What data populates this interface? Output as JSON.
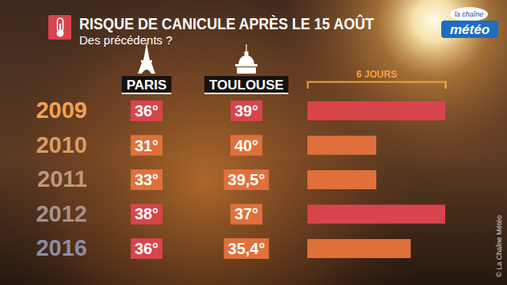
{
  "chart_data": {
    "type": "bar",
    "orientation": "horizontal",
    "title": "RISQUE DE CANICULE APRÈS LE 15 AOÛT",
    "subtitle": "Des précédents ?",
    "categories": [
      "2009",
      "2010",
      "2011",
      "2012",
      "2016"
    ],
    "values": [
      6,
      3,
      3,
      6,
      4.5
    ],
    "colors": [
      "#d8444c",
      "#e0703a",
      "#e0703a",
      "#d8444c",
      "#e0703a"
    ],
    "xlim": [
      0,
      6
    ],
    "xticks": [
      {
        "value": 6,
        "label": "6 JOURS"
      }
    ],
    "columns": [
      {
        "name": "PARIS",
        "values": [
          36,
          31,
          33,
          38,
          36
        ],
        "value_labels": [
          "36°",
          "31°",
          "33°",
          "38°",
          "36°"
        ],
        "colors": [
          "#d8444c",
          "#e0703a",
          "#e0703a",
          "#d8444c",
          "#d8444c"
        ]
      },
      {
        "name": "TOULOUSE",
        "values": [
          39,
          40,
          39.5,
          37,
          35.4
        ],
        "value_labels": [
          "39°",
          "40°",
          "39,5°",
          "37°",
          "35,4°"
        ],
        "colors": [
          "#d8444c",
          "#e0703a",
          "#e0703a",
          "#e0703a",
          "#e0703a"
        ]
      }
    ],
    "logo": [
      "la chaîne",
      "météo"
    ],
    "source": "© La Chaîne Météo"
  }
}
